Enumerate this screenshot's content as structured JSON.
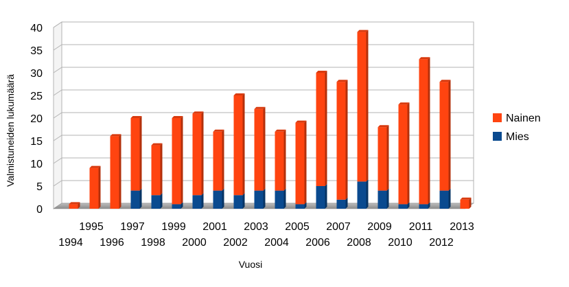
{
  "chart_data": {
    "type": "bar",
    "stacked": true,
    "x": [
      1994,
      1995,
      1996,
      1997,
      1998,
      1999,
      2000,
      2001,
      2002,
      2003,
      2004,
      2005,
      2006,
      2007,
      2008,
      2009,
      2010,
      2011,
      2012,
      2013
    ],
    "categories": [
      "1994",
      "1995",
      "1996",
      "1997",
      "1998",
      "1999",
      "2000",
      "2001",
      "2002",
      "2003",
      "2004",
      "2005",
      "2006",
      "2007",
      "2008",
      "2009",
      "2010",
      "2011",
      "2012",
      "2013"
    ],
    "series": [
      {
        "name": "Mies",
        "color": "#0a4a8f",
        "values": [
          0,
          0,
          0,
          4,
          3,
          1,
          3,
          4,
          3,
          4,
          4,
          1,
          5,
          2,
          6,
          4,
          1,
          1,
          4,
          0
        ]
      },
      {
        "name": "Nainen",
        "color": "#ff4410",
        "values": [
          1,
          9,
          16,
          16,
          11,
          19,
          18,
          13,
          22,
          18,
          13,
          18,
          25,
          26,
          33,
          14,
          22,
          32,
          24,
          2
        ]
      }
    ],
    "totals": [
      1,
      9,
      16,
      20,
      14,
      20,
      21,
      17,
      25,
      22,
      17,
      19,
      30,
      28,
      39,
      18,
      23,
      33,
      28,
      2
    ],
    "ylim": [
      0,
      40
    ],
    "yticks": [
      0,
      5,
      10,
      15,
      20,
      25,
      30,
      35,
      40
    ],
    "xlabel": "Vuosi",
    "ylabel": "Valmistuneiden lukumäärä",
    "grid": true,
    "legend_position": "right"
  }
}
